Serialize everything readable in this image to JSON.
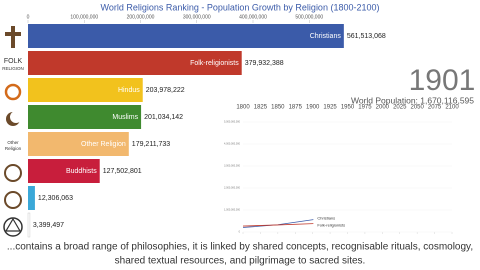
{
  "chart_data": {
    "type": "bar",
    "title": "World Religions Ranking - Population Growth by Religion (1800-2100)",
    "categories": [
      "Christians",
      "Folk-religionists",
      "Hindus",
      "Muslims",
      "Other Religion",
      "Buddhists",
      null,
      null
    ],
    "values": [
      561513068,
      379932388,
      203978222,
      201034142,
      179211733,
      127502801,
      12306063,
      3399497
    ],
    "value_labels": [
      "561,513,068",
      "379,932,388",
      "203,978,222",
      "201,034,142",
      "179,211,733",
      "127,502,801",
      "12,306,063",
      "3,399,497"
    ],
    "colors": [
      "#3b5ba9",
      "#c0392b",
      "#f2c21d",
      "#3f8a2f",
      "#f2b86e",
      "#c81e3c",
      "#3aa8d8",
      "#ffffff"
    ],
    "xlim": [
      0,
      800000000
    ],
    "xticks": [
      0,
      {
        "value": 100000000,
        "label": "100,000,000"
      },
      {
        "value": 200000000,
        "label": "200,000,000"
      },
      {
        "value": 300000000,
        "label": "300,000,000"
      },
      {
        "value": 400000000,
        "label": "400,000,000"
      },
      {
        "value": 500000000,
        "label": "500,000,000"
      }
    ],
    "grid": false,
    "year": "1901",
    "population": "World Population: 1,670,116,595",
    "icon_labels": {
      "folk": [
        "FOLK",
        "RELIGION"
      ],
      "other": [
        "Other",
        "Religion"
      ]
    },
    "caption": [
      "...contains a broad range of philosophies, it is linked by shared concepts, recognisable rituals, cosmology,",
      "shared textual resources, and pilgrimage to sacred sites."
    ],
    "inset": {
      "type": "line",
      "x": [
        1800,
        1850,
        1901
      ],
      "xlim": [
        1800,
        2100
      ],
      "xticks": [
        1800,
        1825,
        1850,
        1875,
        1900,
        1925,
        1950,
        1975,
        2000,
        2025,
        2050,
        2075,
        2100
      ],
      "ylim": [
        0,
        5000000000
      ],
      "yticks": [
        0,
        {
          "value": 1000000000,
          "label": "1,000,000,000"
        },
        {
          "value": 2000000000,
          "label": "2,000,000,000"
        },
        {
          "value": 3000000000,
          "label": "3,000,000,000"
        },
        {
          "value": 4000000000,
          "label": "4,000,000,000"
        },
        {
          "value": 5000000000,
          "label": "5,000,000,000"
        }
      ],
      "series": [
        {
          "name": "Christians",
          "color": "#3b5ba9",
          "values": [
            205000000,
            330000000,
            561513068
          ]
        },
        {
          "name": "Folk-religionists",
          "color": "#c0392b",
          "values": [
            270000000,
            320000000,
            379932388
          ]
        }
      ]
    }
  }
}
